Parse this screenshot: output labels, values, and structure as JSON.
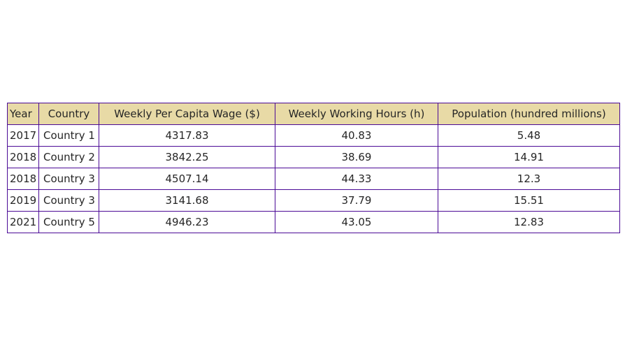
{
  "chart_data": {
    "type": "table",
    "columns": [
      "Year",
      "Country",
      "Weekly Per Capita Wage ($)",
      "Weekly Working Hours (h)",
      "Population (hundred millions)"
    ],
    "rows": [
      [
        "2017",
        "Country 1",
        "4317.83",
        "40.83",
        "5.48"
      ],
      [
        "2018",
        "Country 2",
        "3842.25",
        "38.69",
        "14.91"
      ],
      [
        "2018",
        "Country 3",
        "4507.14",
        "44.33",
        "12.3"
      ],
      [
        "2019",
        "Country 3",
        "3141.68",
        "37.79",
        "15.51"
      ],
      [
        "2021",
        "Country 5",
        "4946.23",
        "43.05",
        "12.83"
      ]
    ],
    "colors": {
      "header_background": "#e8daa6",
      "border": "#4b0a96",
      "text": "#262626"
    }
  }
}
